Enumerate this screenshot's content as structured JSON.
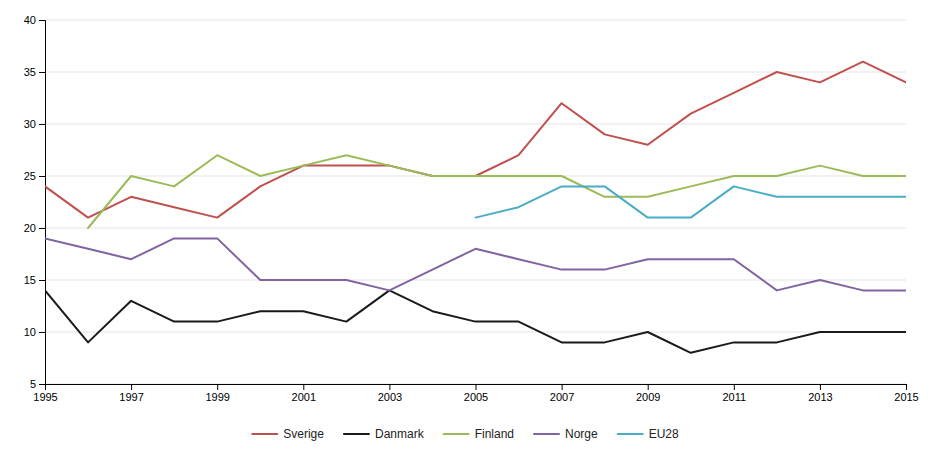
{
  "chart_data": {
    "type": "line",
    "x": [
      1995,
      1996,
      1997,
      1998,
      1999,
      2000,
      2001,
      2002,
      2003,
      2004,
      2005,
      2006,
      2007,
      2008,
      2009,
      2010,
      2011,
      2012,
      2013,
      2014,
      2015
    ],
    "series": [
      {
        "name": "Sverige",
        "color": "#C0504D",
        "values": [
          24,
          21,
          23,
          22,
          21,
          24,
          26,
          26,
          26,
          25,
          25,
          27,
          32,
          29,
          28,
          31,
          33,
          35,
          34,
          36,
          34
        ]
      },
      {
        "name": "Danmark",
        "color": "#1a1a1a",
        "values": [
          14,
          9,
          13,
          11,
          11,
          12,
          12,
          11,
          14,
          12,
          11,
          11,
          9,
          9,
          10,
          8,
          9,
          9,
          10,
          10,
          10
        ]
      },
      {
        "name": "Finland",
        "color": "#9BBB59",
        "values": [
          null,
          20,
          25,
          24,
          27,
          25,
          26,
          27,
          26,
          25,
          25,
          25,
          25,
          23,
          23,
          24,
          25,
          25,
          26,
          25,
          25
        ]
      },
      {
        "name": "Norge",
        "color": "#8064A2",
        "values": [
          19,
          18,
          17,
          19,
          19,
          15,
          15,
          15,
          14,
          16,
          18,
          17,
          16,
          16,
          17,
          17,
          17,
          14,
          15,
          14,
          14
        ]
      },
      {
        "name": "EU28",
        "color": "#4BACC6",
        "values": [
          null,
          null,
          null,
          null,
          null,
          null,
          null,
          null,
          null,
          null,
          21,
          22,
          24,
          24,
          21,
          21,
          24,
          23,
          23,
          23,
          23
        ]
      }
    ],
    "xlim": [
      1995,
      2015
    ],
    "ylim": [
      5,
      40
    ],
    "yticks": [
      5,
      10,
      15,
      20,
      25,
      30,
      35,
      40
    ],
    "xticks": [
      1995,
      1997,
      1999,
      2001,
      2003,
      2005,
      2007,
      2009,
      2011,
      2013,
      2015
    ],
    "grid": true,
    "legend": "bottom"
  }
}
